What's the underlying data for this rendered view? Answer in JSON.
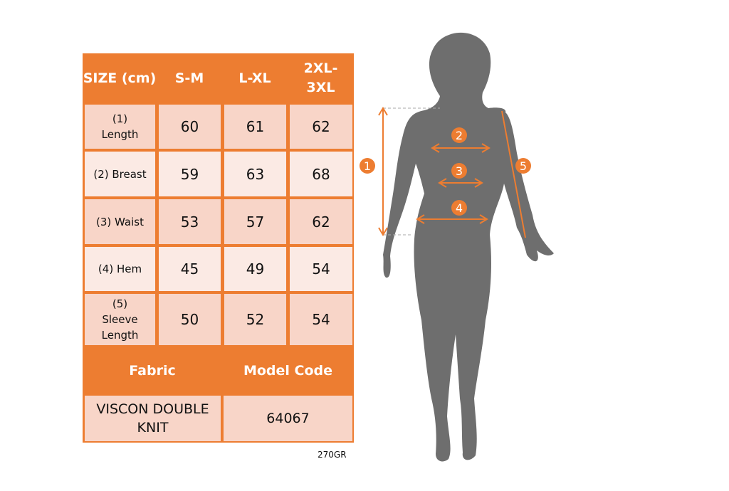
{
  "table": {
    "header": [
      "SIZE (cm)",
      "S-M",
      "L-XL",
      "2XL- 3XL"
    ],
    "rows": [
      {
        "label": "(1) Length",
        "values": [
          "60",
          "61",
          "62"
        ]
      },
      {
        "label": "(2) Breast",
        "values": [
          "59",
          "63",
          "68"
        ]
      },
      {
        "label": "(3) Waist",
        "values": [
          "53",
          "57",
          "62"
        ]
      },
      {
        "label": "(4) Hem",
        "values": [
          "45",
          "49",
          "54"
        ]
      },
      {
        "label": "(5) Sleeve Length",
        "values": [
          "50",
          "52",
          "54"
        ]
      }
    ],
    "fabric_label": "Fabric",
    "model_code_label": "Model Code",
    "fabric_value": "VISCON DOUBLE KNIT",
    "model_code_value": "64067"
  },
  "weight_note": "270GR",
  "figure": {
    "markers": [
      "1",
      "2",
      "3",
      "4",
      "5"
    ]
  },
  "colors": {
    "accent": "#ED7D31",
    "cell_dark": "#F8D5C8",
    "cell_light": "#FBEAE4",
    "silhouette": "#6E6E6E"
  }
}
